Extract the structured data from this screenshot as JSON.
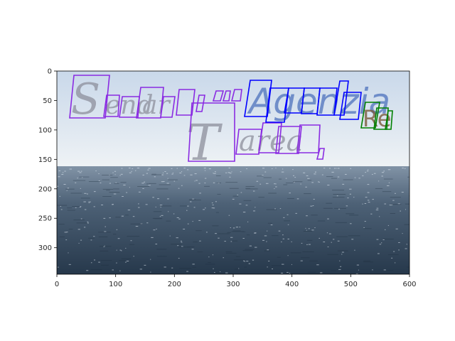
{
  "image": {
    "description_colors": {
      "sky_top": "#c9d8ea",
      "sky_bottom": "#e8eef3",
      "sea_top": "#7d90a3",
      "sea_bottom": "#2c3e52"
    }
  },
  "axes": {
    "x_ticks": [
      "0",
      "100",
      "200",
      "300",
      "400",
      "500",
      "600"
    ],
    "y_ticks": [
      "0",
      "50",
      "100",
      "150",
      "200",
      "250",
      "300"
    ],
    "xlim": [
      0,
      600
    ],
    "ylim": [
      345,
      0
    ]
  },
  "overlay_text": {
    "purple_words": [
      "Sendar",
      "Tarea"
    ],
    "blue_word": "Agenzia",
    "green_word": "Re"
  },
  "box_colors": {
    "purple": "#8a2be2",
    "blue": "#0000ff",
    "green": "#008000"
  }
}
